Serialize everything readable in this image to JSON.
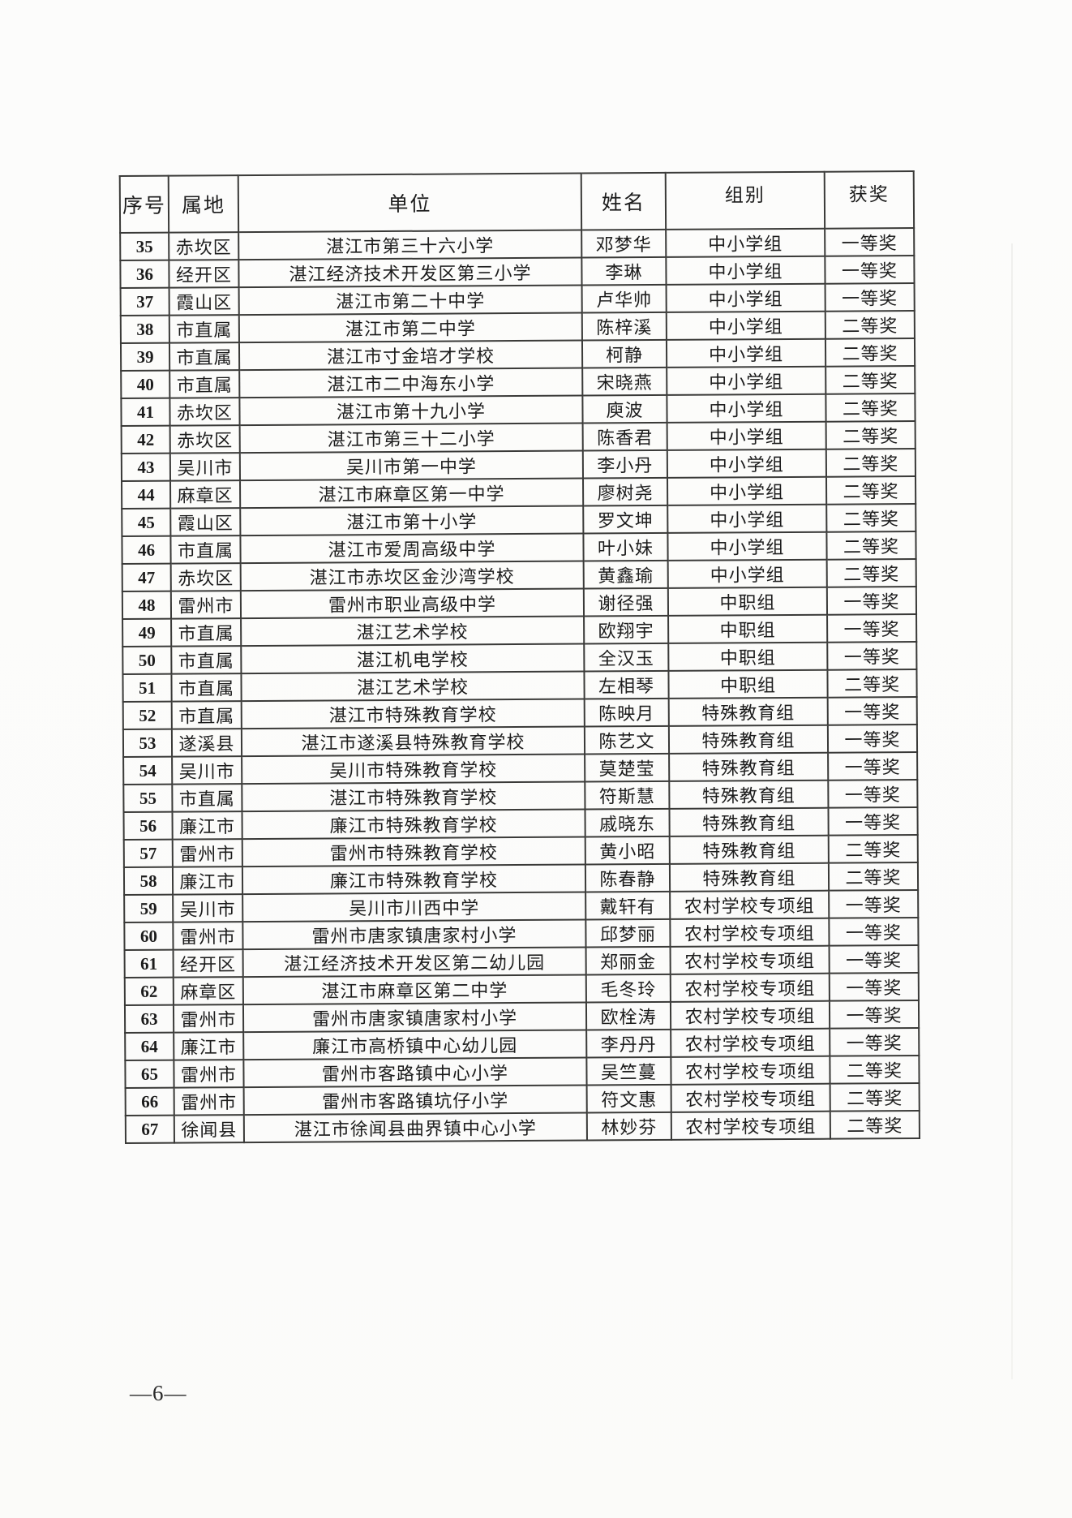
{
  "page": {
    "footer_page_number": "—6—"
  },
  "colors": {
    "page_background": "#fcfcfb",
    "table_border": "#3a3a38",
    "text": "#1c1c1c"
  },
  "table": {
    "columns": [
      {
        "key": "index",
        "label": "序号"
      },
      {
        "key": "locality",
        "label": "属地"
      },
      {
        "key": "unit",
        "label": "单位"
      },
      {
        "key": "name",
        "label": "姓名"
      },
      {
        "key": "group",
        "label": "组别"
      },
      {
        "key": "award",
        "label": "获奖"
      }
    ],
    "rows": [
      {
        "index": "35",
        "locality": "赤坎区",
        "unit": "湛江市第三十六小学",
        "name": "邓梦华",
        "group": "中小学组",
        "award": "一等奖"
      },
      {
        "index": "36",
        "locality": "经开区",
        "unit": "湛江经济技术开发区第三小学",
        "name": "李琳",
        "group": "中小学组",
        "award": "一等奖"
      },
      {
        "index": "37",
        "locality": "霞山区",
        "unit": "湛江市第二十中学",
        "name": "卢华帅",
        "group": "中小学组",
        "award": "一等奖"
      },
      {
        "index": "38",
        "locality": "市直属",
        "unit": "湛江市第二中学",
        "name": "陈梓溪",
        "group": "中小学组",
        "award": "二等奖"
      },
      {
        "index": "39",
        "locality": "市直属",
        "unit": "湛江市寸金培才学校",
        "name": "柯静",
        "group": "中小学组",
        "award": "二等奖"
      },
      {
        "index": "40",
        "locality": "市直属",
        "unit": "湛江市二中海东小学",
        "name": "宋晓燕",
        "group": "中小学组",
        "award": "二等奖"
      },
      {
        "index": "41",
        "locality": "赤坎区",
        "unit": "湛江市第十九小学",
        "name": "庾波",
        "group": "中小学组",
        "award": "二等奖"
      },
      {
        "index": "42",
        "locality": "赤坎区",
        "unit": "湛江市第三十二小学",
        "name": "陈香君",
        "group": "中小学组",
        "award": "二等奖"
      },
      {
        "index": "43",
        "locality": "吴川市",
        "unit": "吴川市第一中学",
        "name": "李小丹",
        "group": "中小学组",
        "award": "二等奖"
      },
      {
        "index": "44",
        "locality": "麻章区",
        "unit": "湛江市麻章区第一中学",
        "name": "廖树尧",
        "group": "中小学组",
        "award": "二等奖"
      },
      {
        "index": "45",
        "locality": "霞山区",
        "unit": "湛江市第十小学",
        "name": "罗文坤",
        "group": "中小学组",
        "award": "二等奖"
      },
      {
        "index": "46",
        "locality": "市直属",
        "unit": "湛江市爱周高级中学",
        "name": "叶小妹",
        "group": "中小学组",
        "award": "二等奖"
      },
      {
        "index": "47",
        "locality": "赤坎区",
        "unit": "湛江市赤坎区金沙湾学校",
        "name": "黄鑫瑜",
        "group": "中小学组",
        "award": "二等奖"
      },
      {
        "index": "48",
        "locality": "雷州市",
        "unit": "雷州市职业高级中学",
        "name": "谢径强",
        "group": "中职组",
        "award": "一等奖"
      },
      {
        "index": "49",
        "locality": "市直属",
        "unit": "湛江艺术学校",
        "name": "欧翔宇",
        "group": "中职组",
        "award": "一等奖"
      },
      {
        "index": "50",
        "locality": "市直属",
        "unit": "湛江机电学校",
        "name": "全汉玉",
        "group": "中职组",
        "award": "一等奖"
      },
      {
        "index": "51",
        "locality": "市直属",
        "unit": "湛江艺术学校",
        "name": "左相琴",
        "group": "中职组",
        "award": "二等奖"
      },
      {
        "index": "52",
        "locality": "市直属",
        "unit": "湛江市特殊教育学校",
        "name": "陈映月",
        "group": "特殊教育组",
        "award": "一等奖"
      },
      {
        "index": "53",
        "locality": "遂溪县",
        "unit": "湛江市遂溪县特殊教育学校",
        "name": "陈艺文",
        "group": "特殊教育组",
        "award": "一等奖"
      },
      {
        "index": "54",
        "locality": "吴川市",
        "unit": "吴川市特殊教育学校",
        "name": "莫楚莹",
        "group": "特殊教育组",
        "award": "一等奖"
      },
      {
        "index": "55",
        "locality": "市直属",
        "unit": "湛江市特殊教育学校",
        "name": "符斯慧",
        "group": "特殊教育组",
        "award": "一等奖"
      },
      {
        "index": "56",
        "locality": "廉江市",
        "unit": "廉江市特殊教育学校",
        "name": "戚晓东",
        "group": "特殊教育组",
        "award": "一等奖"
      },
      {
        "index": "57",
        "locality": "雷州市",
        "unit": "雷州市特殊教育学校",
        "name": "黄小昭",
        "group": "特殊教育组",
        "award": "二等奖"
      },
      {
        "index": "58",
        "locality": "廉江市",
        "unit": "廉江市特殊教育学校",
        "name": "陈春静",
        "group": "特殊教育组",
        "award": "二等奖"
      },
      {
        "index": "59",
        "locality": "吴川市",
        "unit": "吴川市川西中学",
        "name": "戴轩有",
        "group": "农村学校专项组",
        "award": "一等奖"
      },
      {
        "index": "60",
        "locality": "雷州市",
        "unit": "雷州市唐家镇唐家村小学",
        "name": "邱梦丽",
        "group": "农村学校专项组",
        "award": "一等奖"
      },
      {
        "index": "61",
        "locality": "经开区",
        "unit": "湛江经济技术开发区第二幼儿园",
        "name": "郑丽金",
        "group": "农村学校专项组",
        "award": "一等奖"
      },
      {
        "index": "62",
        "locality": "麻章区",
        "unit": "湛江市麻章区第二中学",
        "name": "毛冬玲",
        "group": "农村学校专项组",
        "award": "一等奖"
      },
      {
        "index": "63",
        "locality": "雷州市",
        "unit": "雷州市唐家镇唐家村小学",
        "name": "欧栓涛",
        "group": "农村学校专项组",
        "award": "一等奖"
      },
      {
        "index": "64",
        "locality": "廉江市",
        "unit": "廉江市高桥镇中心幼儿园",
        "name": "李丹丹",
        "group": "农村学校专项组",
        "award": "一等奖"
      },
      {
        "index": "65",
        "locality": "雷州市",
        "unit": "雷州市客路镇中心小学",
        "name": "吴竺蔓",
        "group": "农村学校专项组",
        "award": "二等奖"
      },
      {
        "index": "66",
        "locality": "雷州市",
        "unit": "雷州市客路镇坑仔小学",
        "name": "符文惠",
        "group": "农村学校专项组",
        "award": "二等奖"
      },
      {
        "index": "67",
        "locality": "徐闻县",
        "unit": "湛江市徐闻县曲界镇中心小学",
        "name": "林妙芬",
        "group": "农村学校专项组",
        "award": "二等奖"
      }
    ]
  }
}
